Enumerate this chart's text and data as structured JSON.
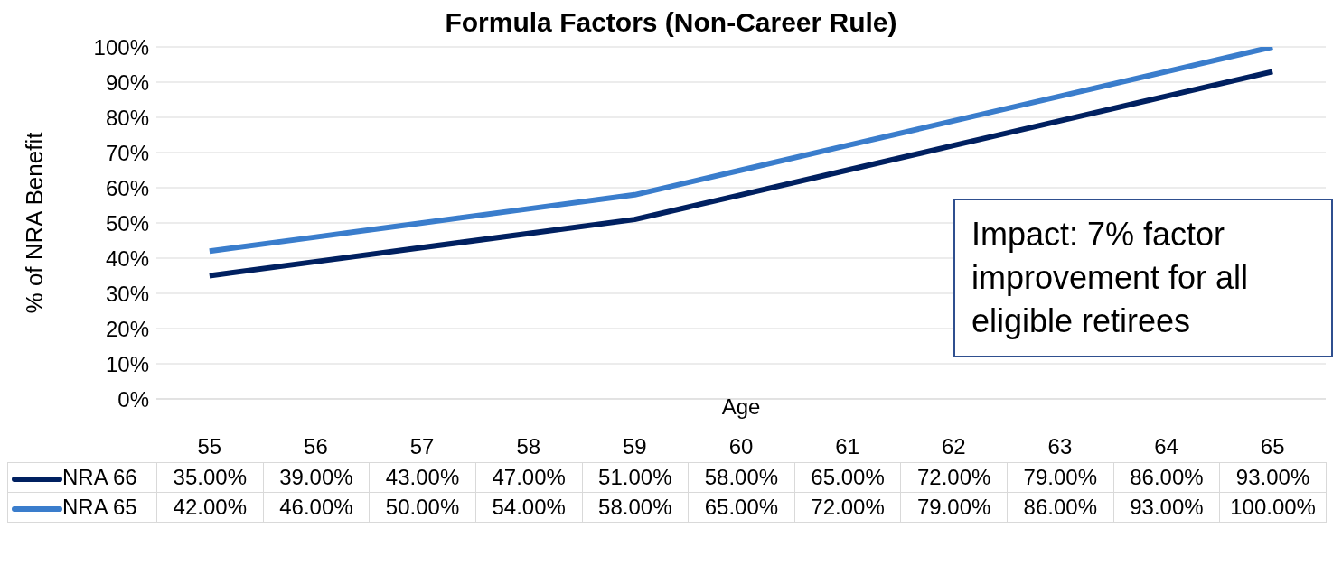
{
  "chart_data": {
    "type": "line",
    "title": "Formula Factors (Non-Career Rule)",
    "xlabel": "Age",
    "ylabel": "% of NRA Benefit",
    "categories": [
      "55",
      "56",
      "57",
      "58",
      "59",
      "60",
      "61",
      "62",
      "63",
      "64",
      "65"
    ],
    "series": [
      {
        "name": "NRA 66",
        "color": "#002060",
        "values": [
          35,
          39,
          43,
          47,
          51,
          58,
          65,
          72,
          79,
          86,
          93
        ],
        "value_labels": [
          "35.00%",
          "39.00%",
          "43.00%",
          "47.00%",
          "51.00%",
          "58.00%",
          "65.00%",
          "72.00%",
          "79.00%",
          "86.00%",
          "93.00%"
        ]
      },
      {
        "name": "NRA 65",
        "color": "#3a7dcc",
        "values": [
          42,
          46,
          50,
          54,
          58,
          65,
          72,
          79,
          86,
          93,
          100
        ],
        "value_labels": [
          "42.00%",
          "46.00%",
          "50.00%",
          "54.00%",
          "58.00%",
          "65.00%",
          "72.00%",
          "79.00%",
          "86.00%",
          "93.00%",
          "100.00%"
        ]
      }
    ],
    "ylim": [
      0,
      100
    ],
    "yticks": [
      {
        "value": 0,
        "label": "0%"
      },
      {
        "value": 10,
        "label": "10%"
      },
      {
        "value": 20,
        "label": "20%"
      },
      {
        "value": 30,
        "label": "30%"
      },
      {
        "value": 40,
        "label": "40%"
      },
      {
        "value": 50,
        "label": "50%"
      },
      {
        "value": 60,
        "label": "60%"
      },
      {
        "value": 70,
        "label": "70%"
      },
      {
        "value": 80,
        "label": "80%"
      },
      {
        "value": 90,
        "label": "90%"
      },
      {
        "value": 100,
        "label": "100%"
      }
    ],
    "grid": "y",
    "legend": "bottom",
    "marker": "none",
    "line_style": "solid",
    "annotations": [
      "Impact: 7% factor improvement for all eligible retirees"
    ]
  }
}
